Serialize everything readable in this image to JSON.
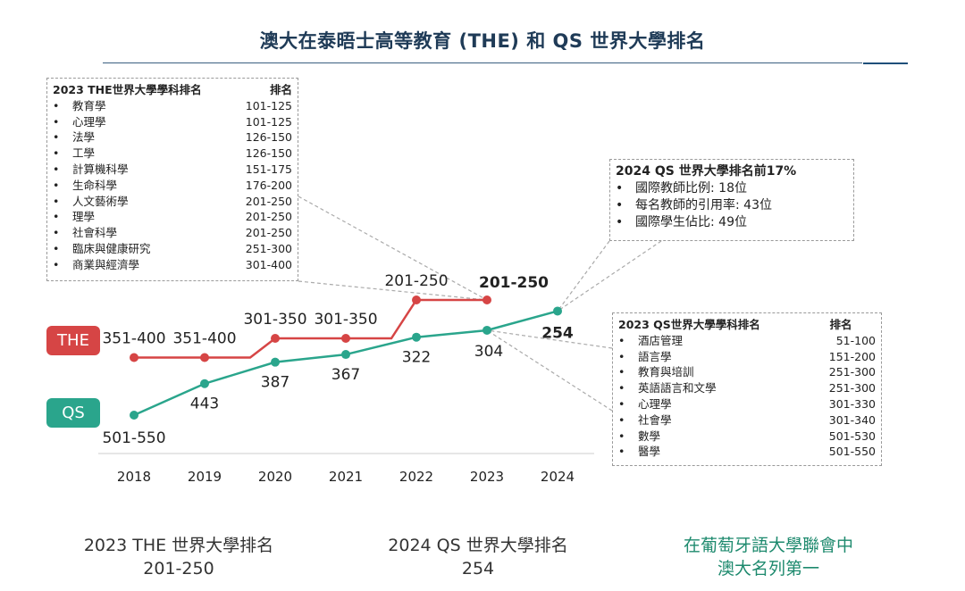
{
  "title": "澳大在泰晤士高等教育 (THE) 和 QS 世界大學排名",
  "colors": {
    "the": "#d64545",
    "qs": "#2aa58c",
    "title": "#1f3b57"
  },
  "chart_data": {
    "type": "line",
    "x": [
      "2018",
      "2019",
      "2020",
      "2021",
      "2022",
      "2023",
      "2024"
    ],
    "series": [
      {
        "name": "THE",
        "labels": [
          "351-400",
          "351-400",
          "301-350",
          "301-350",
          "201-250",
          "201-250"
        ],
        "level": [
          375,
          375,
          325,
          325,
          225,
          225
        ]
      },
      {
        "name": "QS",
        "labels": [
          "501-550",
          "443",
          "387",
          "367",
          "322",
          "304",
          "254"
        ],
        "level": [
          525,
          443,
          387,
          367,
          322,
          304,
          254
        ]
      }
    ]
  },
  "legend": {
    "the": "THE",
    "qs": "QS"
  },
  "the_subjects": {
    "header": "2023 THE世界大學學科排名",
    "rank_header": "排名",
    "items": [
      {
        "name": "教育學",
        "rank": "101-125"
      },
      {
        "name": "心理學",
        "rank": "101-125"
      },
      {
        "name": "法學",
        "rank": "126-150"
      },
      {
        "name": "工學",
        "rank": "126-150"
      },
      {
        "name": "計算機科學",
        "rank": "151-175"
      },
      {
        "name": "生命科學",
        "rank": "176-200"
      },
      {
        "name": "人文藝術學",
        "rank": "201-250"
      },
      {
        "name": "理學",
        "rank": "201-250"
      },
      {
        "name": "社會科學",
        "rank": "201-250"
      },
      {
        "name": "臨床與健康研究",
        "rank": "251-300"
      },
      {
        "name": "商業與經濟學",
        "rank": "301-400"
      }
    ]
  },
  "qs_top": {
    "header": "2024 QS 世界大學排名前17%",
    "items": [
      "國際教師比例: 18位",
      "每名教師的引用率: 43位",
      "國際學生佔比: 49位"
    ]
  },
  "qs_subjects": {
    "header": "2023 QS世界大學學科排名",
    "rank_header": "排名",
    "items": [
      {
        "name": "酒店管理",
        "rank": "51-100"
      },
      {
        "name": "語言學",
        "rank": "151-200"
      },
      {
        "name": "教育與培訓",
        "rank": "251-300"
      },
      {
        "name": "英語語言和文學",
        "rank": "251-300"
      },
      {
        "name": "心理學",
        "rank": "301-330"
      },
      {
        "name": "社會學",
        "rank": "301-340"
      },
      {
        "name": "數學",
        "rank": "501-530"
      },
      {
        "name": "醫學",
        "rank": "501-550"
      }
    ]
  },
  "summary": {
    "the_line1": "2023 THE 世界大學排名",
    "the_line2": "201-250",
    "qs_line1": "2024 QS 世界大學排名",
    "qs_line2": "254",
    "assoc_line1": "在葡萄牙語大學聯會中",
    "assoc_line2": "澳大名列第一"
  },
  "bullet": "•"
}
